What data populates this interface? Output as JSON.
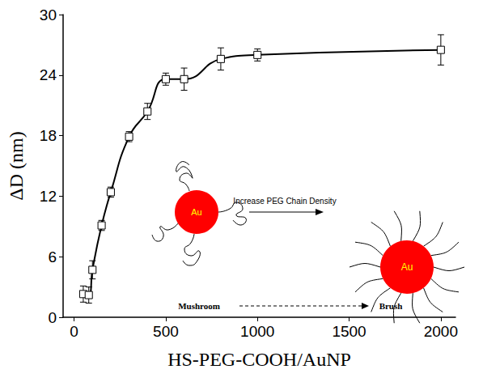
{
  "chart_data": {
    "type": "line",
    "x_label": "HS-PEG-COOH/AuNP",
    "y_label": "ΔD (nm)",
    "xlim": [
      -60,
      2080
    ],
    "xticks": [
      0,
      500,
      1000,
      1500,
      2000
    ],
    "ylim": [
      0,
      30
    ],
    "yticks": [
      0,
      6,
      12,
      18,
      24,
      30
    ],
    "grid": false,
    "series": [
      {
        "color": "#000000",
        "marker": "square",
        "line_style": "smooth",
        "x": [
          50,
          80,
          100,
          150,
          200,
          300,
          400,
          500,
          600,
          800,
          1000,
          2000
        ],
        "values": [
          2.3,
          2.2,
          4.7,
          9.1,
          12.4,
          17.9,
          20.4,
          23.6,
          23.6,
          25.6,
          26.0,
          26.5
        ],
        "errors": [
          0.8,
          0.8,
          0.9,
          0.5,
          0.5,
          0.5,
          0.8,
          0.6,
          1.1,
          1.1,
          0.6,
          1.5
        ]
      }
    ],
    "annotations": {
      "left_particle": "Au",
      "right_particle": "Au",
      "arrow_label": "Increase PEG Chain Density",
      "left_state": "Mushroom",
      "right_state": "Brush"
    }
  }
}
